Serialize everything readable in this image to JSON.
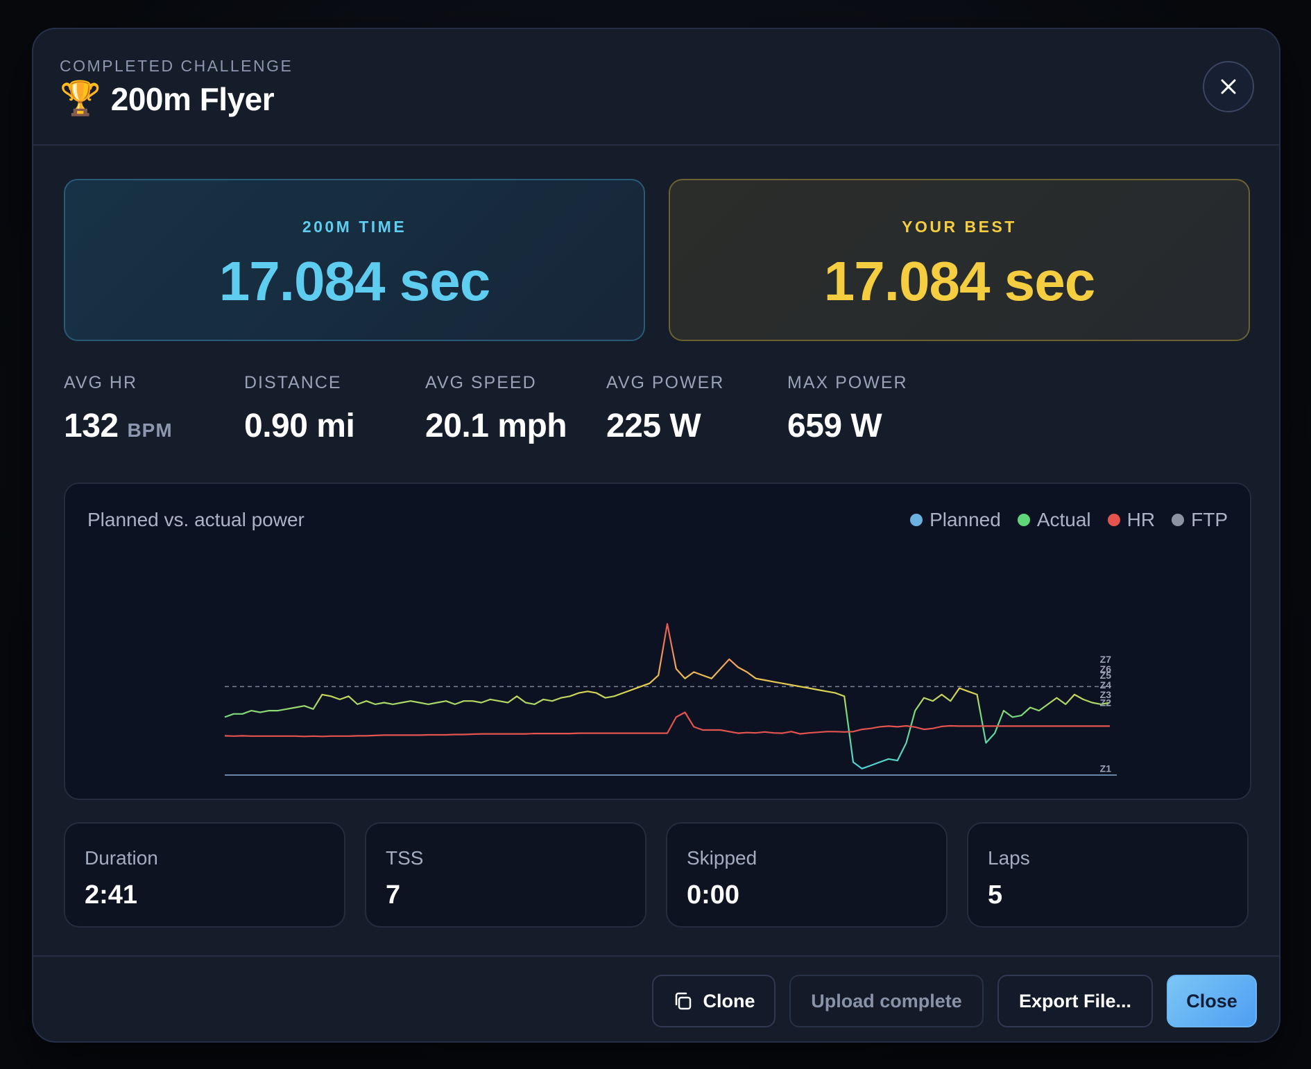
{
  "header": {
    "eyebrow": "COMPLETED CHALLENGE",
    "trophy": "🏆",
    "title": "200m Flyer",
    "close_icon": "close-icon"
  },
  "result": {
    "time_label": "200M TIME",
    "time_value": "17.084 sec",
    "best_label": "YOUR BEST",
    "best_value": "17.084 sec"
  },
  "stats": [
    {
      "label": "AVG HR",
      "value": "132",
      "unit": "BPM"
    },
    {
      "label": "DISTANCE",
      "value": "0.90 mi",
      "unit": ""
    },
    {
      "label": "AVG SPEED",
      "value": "20.1 mph",
      "unit": ""
    },
    {
      "label": "AVG POWER",
      "value": "225 W",
      "unit": ""
    },
    {
      "label": "MAX POWER",
      "value": "659 W",
      "unit": ""
    }
  ],
  "chart_data": {
    "type": "line",
    "title": "Planned vs. actual power",
    "legend": [
      "Planned",
      "Actual",
      "HR",
      "FTP"
    ],
    "legend_colors": [
      "#6cb2e0",
      "#5fd67a",
      "#e4544e",
      "#8b93a3"
    ],
    "zone_labels": [
      "Z7",
      "Z6",
      "Z5",
      "Z4",
      "Z3",
      "Z2",
      "Z1"
    ],
    "x": [
      0,
      1,
      2,
      3,
      4,
      5,
      6,
      7,
      8,
      9,
      10,
      11,
      12,
      13,
      14,
      15,
      16,
      17,
      18,
      19,
      20,
      21,
      22,
      23,
      24,
      25,
      26,
      27,
      28,
      29,
      30,
      31,
      32,
      33,
      34,
      35,
      36,
      37,
      38,
      39,
      40,
      41,
      42,
      43,
      44,
      45,
      46,
      47,
      48,
      49,
      50,
      51,
      52,
      53,
      54,
      55,
      56,
      57,
      58,
      59,
      60,
      61,
      62,
      63,
      64,
      65,
      66,
      67,
      68,
      69,
      70,
      71,
      72,
      73,
      74,
      75,
      76,
      77,
      78,
      79,
      80,
      81,
      82,
      83,
      84,
      85,
      86,
      87,
      88,
      89,
      90,
      91,
      92,
      93,
      94,
      95,
      96,
      97,
      98,
      99,
      100
    ],
    "series": [
      {
        "name": "Actual",
        "values": [
          180,
          190,
          190,
          200,
          195,
          200,
          200,
          205,
          210,
          215,
          205,
          250,
          245,
          235,
          245,
          220,
          230,
          220,
          225,
          220,
          225,
          230,
          225,
          220,
          225,
          230,
          220,
          230,
          230,
          225,
          235,
          230,
          225,
          245,
          225,
          220,
          235,
          230,
          240,
          245,
          255,
          260,
          255,
          240,
          245,
          255,
          265,
          275,
          285,
          310,
          470,
          330,
          300,
          320,
          310,
          300,
          330,
          360,
          335,
          320,
          300,
          295,
          290,
          285,
          280,
          275,
          270,
          265,
          260,
          255,
          245,
          40,
          20,
          30,
          40,
          50,
          45,
          100,
          200,
          240,
          230,
          250,
          230,
          270,
          260,
          250,
          100,
          130,
          200,
          180,
          185,
          210,
          200,
          220,
          240,
          220,
          250,
          235,
          225,
          220,
          225
        ],
        "colors": "gradient-by-value"
      },
      {
        "name": "HR",
        "values": [
          122,
          121,
          122,
          121,
          121,
          121,
          121,
          121,
          121,
          120,
          121,
          120,
          121,
          121,
          121,
          122,
          122,
          123,
          124,
          124,
          124,
          124,
          124,
          125,
          125,
          125,
          126,
          126,
          127,
          128,
          128,
          128,
          128,
          128,
          128,
          129,
          129,
          129,
          129,
          129,
          130,
          130,
          130,
          130,
          130,
          130,
          130,
          130,
          130,
          130,
          130,
          180,
          195,
          150,
          140,
          140,
          140,
          135,
          130,
          132,
          131,
          134,
          131,
          130,
          135,
          128,
          131,
          133,
          135,
          135,
          134,
          135,
          142,
          145,
          150,
          152,
          150,
          153,
          149,
          142,
          145,
          151,
          153,
          152,
          152,
          152,
          152,
          152,
          152,
          152,
          152,
          152,
          152,
          152,
          152,
          152,
          152,
          152,
          152,
          152,
          152
        ],
        "color": "#e4544e"
      }
    ],
    "ftp_line": 275,
    "y_range": [
      0,
      700
    ],
    "grid": false
  },
  "summary": [
    {
      "label": "Duration",
      "value": "2:41"
    },
    {
      "label": "TSS",
      "value": "7"
    },
    {
      "label": "Skipped",
      "value": "0:00"
    },
    {
      "label": "Laps",
      "value": "5"
    }
  ],
  "footer": {
    "clone_label": "Clone",
    "clone_icon": "copy-icon",
    "upload_label": "Upload complete",
    "export_label": "Export File...",
    "close_label": "Close"
  }
}
